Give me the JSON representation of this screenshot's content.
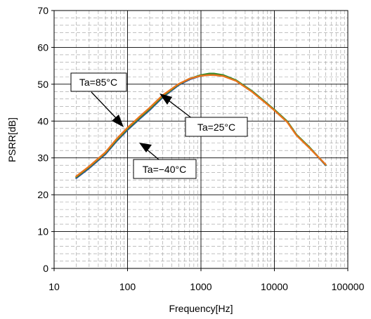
{
  "chart_data": {
    "type": "line",
    "xlabel": "Frequency[Hz]",
    "ylabel": "PSRR[dB]",
    "x_scale": "log",
    "xlim": [
      10,
      100000
    ],
    "ylim": [
      0,
      70
    ],
    "x_ticks": [
      10,
      100,
      1000,
      10000,
      100000
    ],
    "x_tick_labels": [
      "10",
      "100",
      "1000",
      "10000",
      "100000"
    ],
    "y_ticks": [
      0,
      10,
      20,
      30,
      40,
      50,
      60,
      70
    ],
    "y_tick_labels": [
      "0",
      "10",
      "20",
      "30",
      "40",
      "50",
      "60",
      "70"
    ],
    "grid": true,
    "series": [
      {
        "color": "#2b4fa0",
        "x": [
          20,
          30,
          50,
          70,
          100,
          150,
          200,
          300,
          500,
          700,
          1000,
          1300,
          1500,
          2000,
          3000,
          5000,
          7000,
          10000,
          15000,
          20000,
          30000,
          50000
        ],
        "y": [
          24.5,
          27.2,
          31.0,
          34.4,
          37.6,
          40.8,
          43.0,
          46.4,
          49.8,
          51.3,
          52.3,
          52.7,
          52.7,
          52.4,
          51.0,
          48.0,
          45.6,
          43.0,
          39.8,
          36.2,
          32.8,
          28.0
        ]
      },
      {
        "color": "#3a8a2a",
        "x": [
          20,
          30,
          50,
          70,
          100,
          150,
          200,
          300,
          500,
          700,
          1000,
          1300,
          1500,
          2000,
          3000,
          5000,
          7000,
          10000,
          15000,
          20000,
          30000,
          50000
        ],
        "y": [
          24.8,
          27.5,
          31.3,
          34.7,
          37.9,
          41.1,
          43.3,
          46.7,
          50.0,
          51.5,
          52.5,
          52.9,
          52.9,
          52.5,
          51.1,
          48.1,
          45.7,
          43.1,
          39.9,
          36.3,
          32.9,
          28.1
        ]
      },
      {
        "color": "#e8731c",
        "x": [
          20,
          30,
          50,
          70,
          100,
          150,
          200,
          300,
          500,
          700,
          1000,
          1300,
          1500,
          2000,
          3000,
          5000,
          7000,
          10000,
          15000,
          20000,
          30000,
          50000
        ],
        "y": [
          25.0,
          27.7,
          31.5,
          35.0,
          38.2,
          41.4,
          43.6,
          47.0,
          50.1,
          51.5,
          52.3,
          52.5,
          52.5,
          52.2,
          50.9,
          47.9,
          45.5,
          42.9,
          39.7,
          36.1,
          32.7,
          28.2
        ]
      }
    ],
    "annotations": [
      {
        "text": "Ta=85°C",
        "points_to": [
          100,
          38.5
        ]
      },
      {
        "text": "Ta=25°C",
        "points_to": [
          500,
          49.5
        ]
      },
      {
        "text": "Ta=−40°C",
        "points_to": [
          100,
          38
        ]
      }
    ]
  }
}
